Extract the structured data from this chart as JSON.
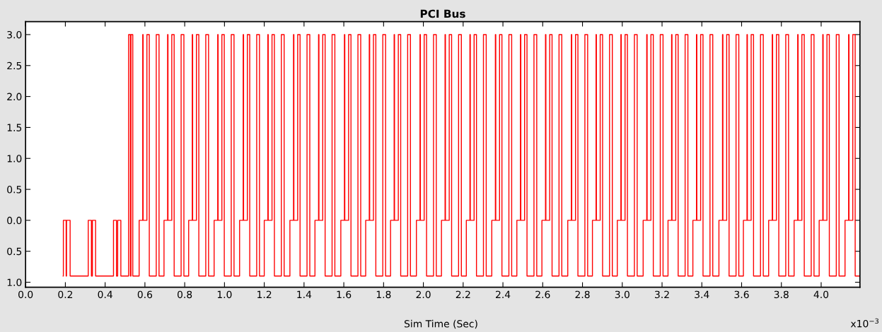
{
  "chart_data": {
    "type": "step",
    "title": "PCI Bus",
    "xlabel": "Sim Time (Sec)",
    "annotations": [
      "x10$^{−3}$"
    ],
    "xlim": [
      0,
      4.195
    ],
    "ylim": [
      -1.08,
      3.21
    ],
    "xticks": [
      {
        "value": 0,
        "label": "0.0"
      },
      {
        "value": 0.2,
        "label": "0.2"
      },
      {
        "value": 0.4,
        "label": "0.4"
      },
      {
        "value": 0.6,
        "label": "0.6"
      },
      {
        "value": 0.8,
        "label": "0.8"
      },
      {
        "value": 1.0,
        "label": "1.0"
      },
      {
        "value": 1.2,
        "label": "1.2"
      },
      {
        "value": 1.4,
        "label": "1.4"
      },
      {
        "value": 1.6,
        "label": "1.6"
      },
      {
        "value": 1.8,
        "label": "1.8"
      },
      {
        "value": 2.0,
        "label": "2.0"
      },
      {
        "value": 2.2,
        "label": "2.2"
      },
      {
        "value": 2.4,
        "label": "2.4"
      },
      {
        "value": 2.6,
        "label": "2.6"
      },
      {
        "value": 2.8,
        "label": "2.8"
      },
      {
        "value": 3.0,
        "label": "3.0"
      },
      {
        "value": 3.2,
        "label": "3.2"
      },
      {
        "value": 3.4,
        "label": "3.4"
      },
      {
        "value": 3.6,
        "label": "3.6"
      },
      {
        "value": 3.8,
        "label": "3.8"
      },
      {
        "value": 4.0,
        "label": "4.0"
      }
    ],
    "yticks": [
      {
        "value": 3,
        "label": "3.0"
      },
      {
        "value": 2.5,
        "label": "2.5"
      },
      {
        "value": 2,
        "label": "2.0"
      },
      {
        "value": 1.5,
        "label": "1.5"
      },
      {
        "value": 1,
        "label": "1.0"
      },
      {
        "value": 0.5,
        "label": "0.5"
      },
      {
        "value": 0,
        "label": "0.0"
      },
      {
        "value": -0.5,
        "label": "0.5"
      },
      {
        "value": -1,
        "label": "1.0"
      }
    ],
    "series": [
      {
        "color": "#ff0000",
        "line_style": "solid",
        "x": [
          0.189,
          0.19,
          0.204,
          0.206,
          0.224,
          0.315,
          0.331,
          0.336,
          0.352,
          0.442,
          0.457,
          0.463,
          0.479,
          0.518,
          0.527,
          0.53,
          0.539,
          0.571,
          0.589,
          0.591,
          0.61,
          0.622,
          0.657,
          0.671,
          0.696,
          0.714,
          0.716,
          0.735,
          0.747,
          0.782,
          0.796,
          0.82,
          0.838,
          0.84,
          0.859,
          0.871,
          0.906,
          0.92,
          0.948,
          0.966,
          0.968,
          0.987,
          0.999,
          1.034,
          1.048,
          1.076,
          1.094,
          1.096,
          1.115,
          1.127,
          1.162,
          1.176,
          1.2,
          1.218,
          1.22,
          1.239,
          1.251,
          1.286,
          1.3,
          1.329,
          1.347,
          1.349,
          1.368,
          1.38,
          1.415,
          1.429,
          1.455,
          1.473,
          1.475,
          1.494,
          1.506,
          1.541,
          1.555,
          1.585,
          1.603,
          1.605,
          1.624,
          1.636,
          1.671,
          1.685,
          1.71,
          1.728,
          1.73,
          1.749,
          1.761,
          1.796,
          1.81,
          1.835,
          1.853,
          1.855,
          1.874,
          1.886,
          1.921,
          1.935,
          1.965,
          1.983,
          1.985,
          2.004,
          2.016,
          2.051,
          2.065,
          2.091,
          2.109,
          2.111,
          2.13,
          2.142,
          2.177,
          2.191,
          2.216,
          2.234,
          2.236,
          2.255,
          2.267,
          2.302,
          2.316,
          2.344,
          2.362,
          2.364,
          2.383,
          2.395,
          2.43,
          2.444,
          2.47,
          2.488,
          2.49,
          2.509,
          2.521,
          2.556,
          2.57,
          2.596,
          2.614,
          2.616,
          2.635,
          2.647,
          2.682,
          2.696,
          2.726,
          2.744,
          2.746,
          2.765,
          2.777,
          2.812,
          2.826,
          2.85,
          2.868,
          2.87,
          2.889,
          2.901,
          2.936,
          2.95,
          2.975,
          2.993,
          2.995,
          3.014,
          3.026,
          3.061,
          3.075,
          3.105,
          3.123,
          3.125,
          3.144,
          3.156,
          3.191,
          3.205,
          3.23,
          3.248,
          3.25,
          3.269,
          3.281,
          3.316,
          3.33,
          3.355,
          3.373,
          3.375,
          3.394,
          3.406,
          3.441,
          3.455,
          3.486,
          3.504,
          3.506,
          3.525,
          3.537,
          3.572,
          3.586,
          3.609,
          3.627,
          3.629,
          3.648,
          3.66,
          3.695,
          3.709,
          3.736,
          3.754,
          3.756,
          3.775,
          3.787,
          3.822,
          3.836,
          3.864,
          3.882,
          3.884,
          3.903,
          3.915,
          3.95,
          3.964,
          3.99,
          4.008,
          4.01,
          4.029,
          4.041,
          4.076,
          4.09,
          4.12,
          4.138,
          4.14,
          4.159,
          4.171,
          4.195
        ],
        "values": [
          -0.9,
          0,
          -0.9,
          0,
          -0.9,
          0,
          -0.9,
          0,
          -0.9,
          0,
          -0.9,
          0,
          -0.9,
          3,
          -0.9,
          3,
          -0.9,
          0,
          3,
          0,
          3,
          -0.9,
          3,
          -0.9,
          0,
          3,
          0,
          3,
          -0.9,
          3,
          -0.9,
          0,
          3,
          0,
          3,
          -0.9,
          3,
          -0.9,
          0,
          3,
          0,
          3,
          -0.9,
          3,
          -0.9,
          0,
          3,
          0,
          3,
          -0.9,
          3,
          -0.9,
          0,
          3,
          0,
          3,
          -0.9,
          3,
          -0.9,
          0,
          3,
          0,
          3,
          -0.9,
          3,
          -0.9,
          0,
          3,
          0,
          3,
          -0.9,
          3,
          -0.9,
          0,
          3,
          0,
          3,
          -0.9,
          3,
          -0.9,
          0,
          3,
          0,
          3,
          -0.9,
          3,
          -0.9,
          0,
          3,
          0,
          3,
          -0.9,
          3,
          -0.9,
          0,
          3,
          0,
          3,
          -0.9,
          3,
          -0.9,
          0,
          3,
          0,
          3,
          -0.9,
          3,
          -0.9,
          0,
          3,
          0,
          3,
          -0.9,
          3,
          -0.9,
          0,
          3,
          0,
          3,
          -0.9,
          3,
          -0.9,
          0,
          3,
          0,
          3,
          -0.9,
          3,
          -0.9,
          0,
          3,
          0,
          3,
          -0.9,
          3,
          -0.9,
          0,
          3,
          0,
          3,
          -0.9,
          3,
          -0.9,
          0,
          3,
          0,
          3,
          -0.9,
          3,
          -0.9,
          0,
          3,
          0,
          3,
          -0.9,
          3,
          -0.9,
          0,
          3,
          0,
          3,
          -0.9,
          3,
          -0.9,
          0,
          3,
          0,
          3,
          -0.9,
          3,
          -0.9,
          0,
          3,
          0,
          3,
          -0.9,
          3,
          -0.9,
          0,
          3,
          0,
          3,
          -0.9,
          3,
          -0.9,
          0,
          3,
          0,
          3,
          -0.9,
          3,
          -0.9,
          0,
          3,
          0,
          3,
          -0.9,
          3,
          -0.9,
          0,
          3,
          0,
          3,
          -0.9,
          3,
          -0.9,
          0,
          3,
          0,
          3,
          -0.9,
          3,
          -0.9,
          0,
          3,
          0,
          3,
          -0.9,
          -0.9
        ]
      }
    ]
  }
}
